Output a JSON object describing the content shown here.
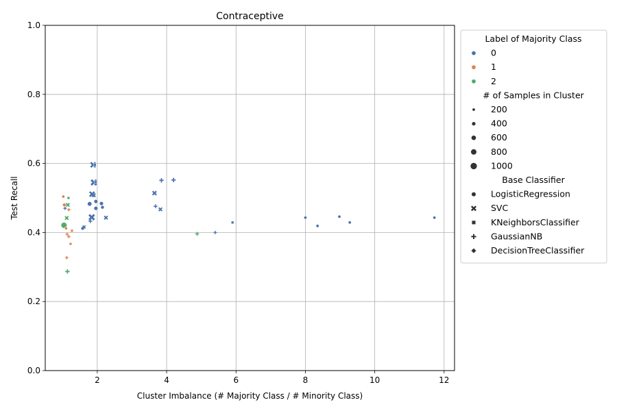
{
  "chart_data": {
    "type": "scatter",
    "title": "Contraceptive",
    "xlabel": "Cluster Imbalance (# Majority Class / # Minority Class)",
    "ylabel": "Test Recall",
    "xlim": [
      0.5,
      12.3
    ],
    "ylim": [
      0.0,
      1.0
    ],
    "xticks": [
      2,
      4,
      6,
      8,
      10,
      12
    ],
    "yticks": [
      0.0,
      0.2,
      0.4,
      0.6,
      0.8,
      1.0
    ],
    "grid": true,
    "legend_placement": "outside-right",
    "colors": {
      "0": "#4c72b0",
      "1": "#dd8452",
      "2": "#55a868"
    },
    "legend": {
      "hue_title": "Label of Majority Class",
      "hue_entries": [
        {
          "label": "0",
          "class": "0"
        },
        {
          "label": "1",
          "class": "1"
        },
        {
          "label": "2",
          "class": "2"
        }
      ],
      "size_title": "# of Samples in Cluster",
      "size_entries": [
        {
          "label": "200",
          "value": 200
        },
        {
          "label": "400",
          "value": 400
        },
        {
          "label": "600",
          "value": 600
        },
        {
          "label": "800",
          "value": 800
        },
        {
          "label": "1000",
          "value": 1000
        }
      ],
      "style_title": "Base Classifier",
      "style_entries": [
        {
          "label": "LogisticRegression",
          "marker": "circle"
        },
        {
          "label": "SVC",
          "marker": "x"
        },
        {
          "label": "KNeighborsClassifier",
          "marker": "square"
        },
        {
          "label": "GaussianNB",
          "marker": "plus"
        },
        {
          "label": "DecisionTreeClassifier",
          "marker": "diamond"
        }
      ]
    },
    "points": [
      {
        "x": 1.02,
        "y": 0.504,
        "class": "1",
        "marker": "circle",
        "size": 200
      },
      {
        "x": 1.05,
        "y": 0.48,
        "class": "1",
        "marker": "circle",
        "size": 300
      },
      {
        "x": 1.04,
        "y": 0.421,
        "class": "2",
        "marker": "circle",
        "size": 800
      },
      {
        "x": 1.1,
        "y": 0.412,
        "class": "1",
        "marker": "circle",
        "size": 200
      },
      {
        "x": 1.07,
        "y": 0.47,
        "class": "0",
        "marker": "plus",
        "size": 200
      },
      {
        "x": 1.15,
        "y": 0.48,
        "class": "2",
        "marker": "x",
        "size": 300
      },
      {
        "x": 1.17,
        "y": 0.5,
        "class": "2",
        "marker": "square",
        "size": 200
      },
      {
        "x": 1.18,
        "y": 0.466,
        "class": "1",
        "marker": "plus",
        "size": 200
      },
      {
        "x": 1.12,
        "y": 0.442,
        "class": "2",
        "marker": "x",
        "size": 300
      },
      {
        "x": 1.13,
        "y": 0.395,
        "class": "1",
        "marker": "plus",
        "size": 200
      },
      {
        "x": 1.18,
        "y": 0.388,
        "class": "1",
        "marker": "plus",
        "size": 200
      },
      {
        "x": 1.27,
        "y": 0.405,
        "class": "1",
        "marker": "square",
        "size": 200
      },
      {
        "x": 1.23,
        "y": 0.367,
        "class": "1",
        "marker": "square",
        "size": 200
      },
      {
        "x": 1.12,
        "y": 0.327,
        "class": "1",
        "marker": "plus",
        "size": 200
      },
      {
        "x": 1.14,
        "y": 0.287,
        "class": "2",
        "marker": "plus",
        "size": 400
      },
      {
        "x": 1.58,
        "y": 0.412,
        "class": "0",
        "marker": "circle",
        "size": 300
      },
      {
        "x": 1.62,
        "y": 0.416,
        "class": "0",
        "marker": "x",
        "size": 200
      },
      {
        "x": 1.78,
        "y": 0.483,
        "class": "0",
        "marker": "circle",
        "size": 500
      },
      {
        "x": 1.85,
        "y": 0.511,
        "class": "0",
        "marker": "x",
        "size": 600
      },
      {
        "x": 1.9,
        "y": 0.508,
        "class": "0",
        "marker": "x",
        "size": 300
      },
      {
        "x": 1.88,
        "y": 0.596,
        "class": "0",
        "marker": "x",
        "size": 600
      },
      {
        "x": 1.93,
        "y": 0.596,
        "class": "0",
        "marker": "square",
        "size": 200
      },
      {
        "x": 1.9,
        "y": 0.545,
        "class": "0",
        "marker": "x",
        "size": 700
      },
      {
        "x": 1.95,
        "y": 0.546,
        "class": "0",
        "marker": "square",
        "size": 200
      },
      {
        "x": 1.96,
        "y": 0.49,
        "class": "0",
        "marker": "circle",
        "size": 400
      },
      {
        "x": 1.96,
        "y": 0.47,
        "class": "0",
        "marker": "circle",
        "size": 400
      },
      {
        "x": 1.84,
        "y": 0.444,
        "class": "0",
        "marker": "x",
        "size": 700
      },
      {
        "x": 1.8,
        "y": 0.433,
        "class": "0",
        "marker": "plus",
        "size": 300
      },
      {
        "x": 2.12,
        "y": 0.484,
        "class": "0",
        "marker": "circle",
        "size": 400
      },
      {
        "x": 2.15,
        "y": 0.473,
        "class": "0",
        "marker": "circle",
        "size": 300
      },
      {
        "x": 2.25,
        "y": 0.443,
        "class": "0",
        "marker": "x",
        "size": 300
      },
      {
        "x": 3.65,
        "y": 0.514,
        "class": "0",
        "marker": "x",
        "size": 400
      },
      {
        "x": 3.68,
        "y": 0.476,
        "class": "0",
        "marker": "plus",
        "size": 300
      },
      {
        "x": 3.82,
        "y": 0.467,
        "class": "0",
        "marker": "x",
        "size": 300
      },
      {
        "x": 3.85,
        "y": 0.551,
        "class": "0",
        "marker": "plus",
        "size": 400
      },
      {
        "x": 4.2,
        "y": 0.552,
        "class": "0",
        "marker": "plus",
        "size": 400
      },
      {
        "x": 4.88,
        "y": 0.396,
        "class": "2",
        "marker": "plus",
        "size": 300
      },
      {
        "x": 5.4,
        "y": 0.4,
        "class": "0",
        "marker": "plus",
        "size": 200
      },
      {
        "x": 5.9,
        "y": 0.429,
        "class": "0",
        "marker": "square",
        "size": 200
      },
      {
        "x": 8.0,
        "y": 0.443,
        "class": "0",
        "marker": "circle",
        "size": 200
      },
      {
        "x": 8.35,
        "y": 0.419,
        "class": "0",
        "marker": "circle",
        "size": 200
      },
      {
        "x": 8.98,
        "y": 0.446,
        "class": "0",
        "marker": "circle",
        "size": 200
      },
      {
        "x": 9.28,
        "y": 0.429,
        "class": "0",
        "marker": "circle",
        "size": 200
      },
      {
        "x": 11.72,
        "y": 0.443,
        "class": "0",
        "marker": "circle",
        "size": 200
      }
    ]
  }
}
